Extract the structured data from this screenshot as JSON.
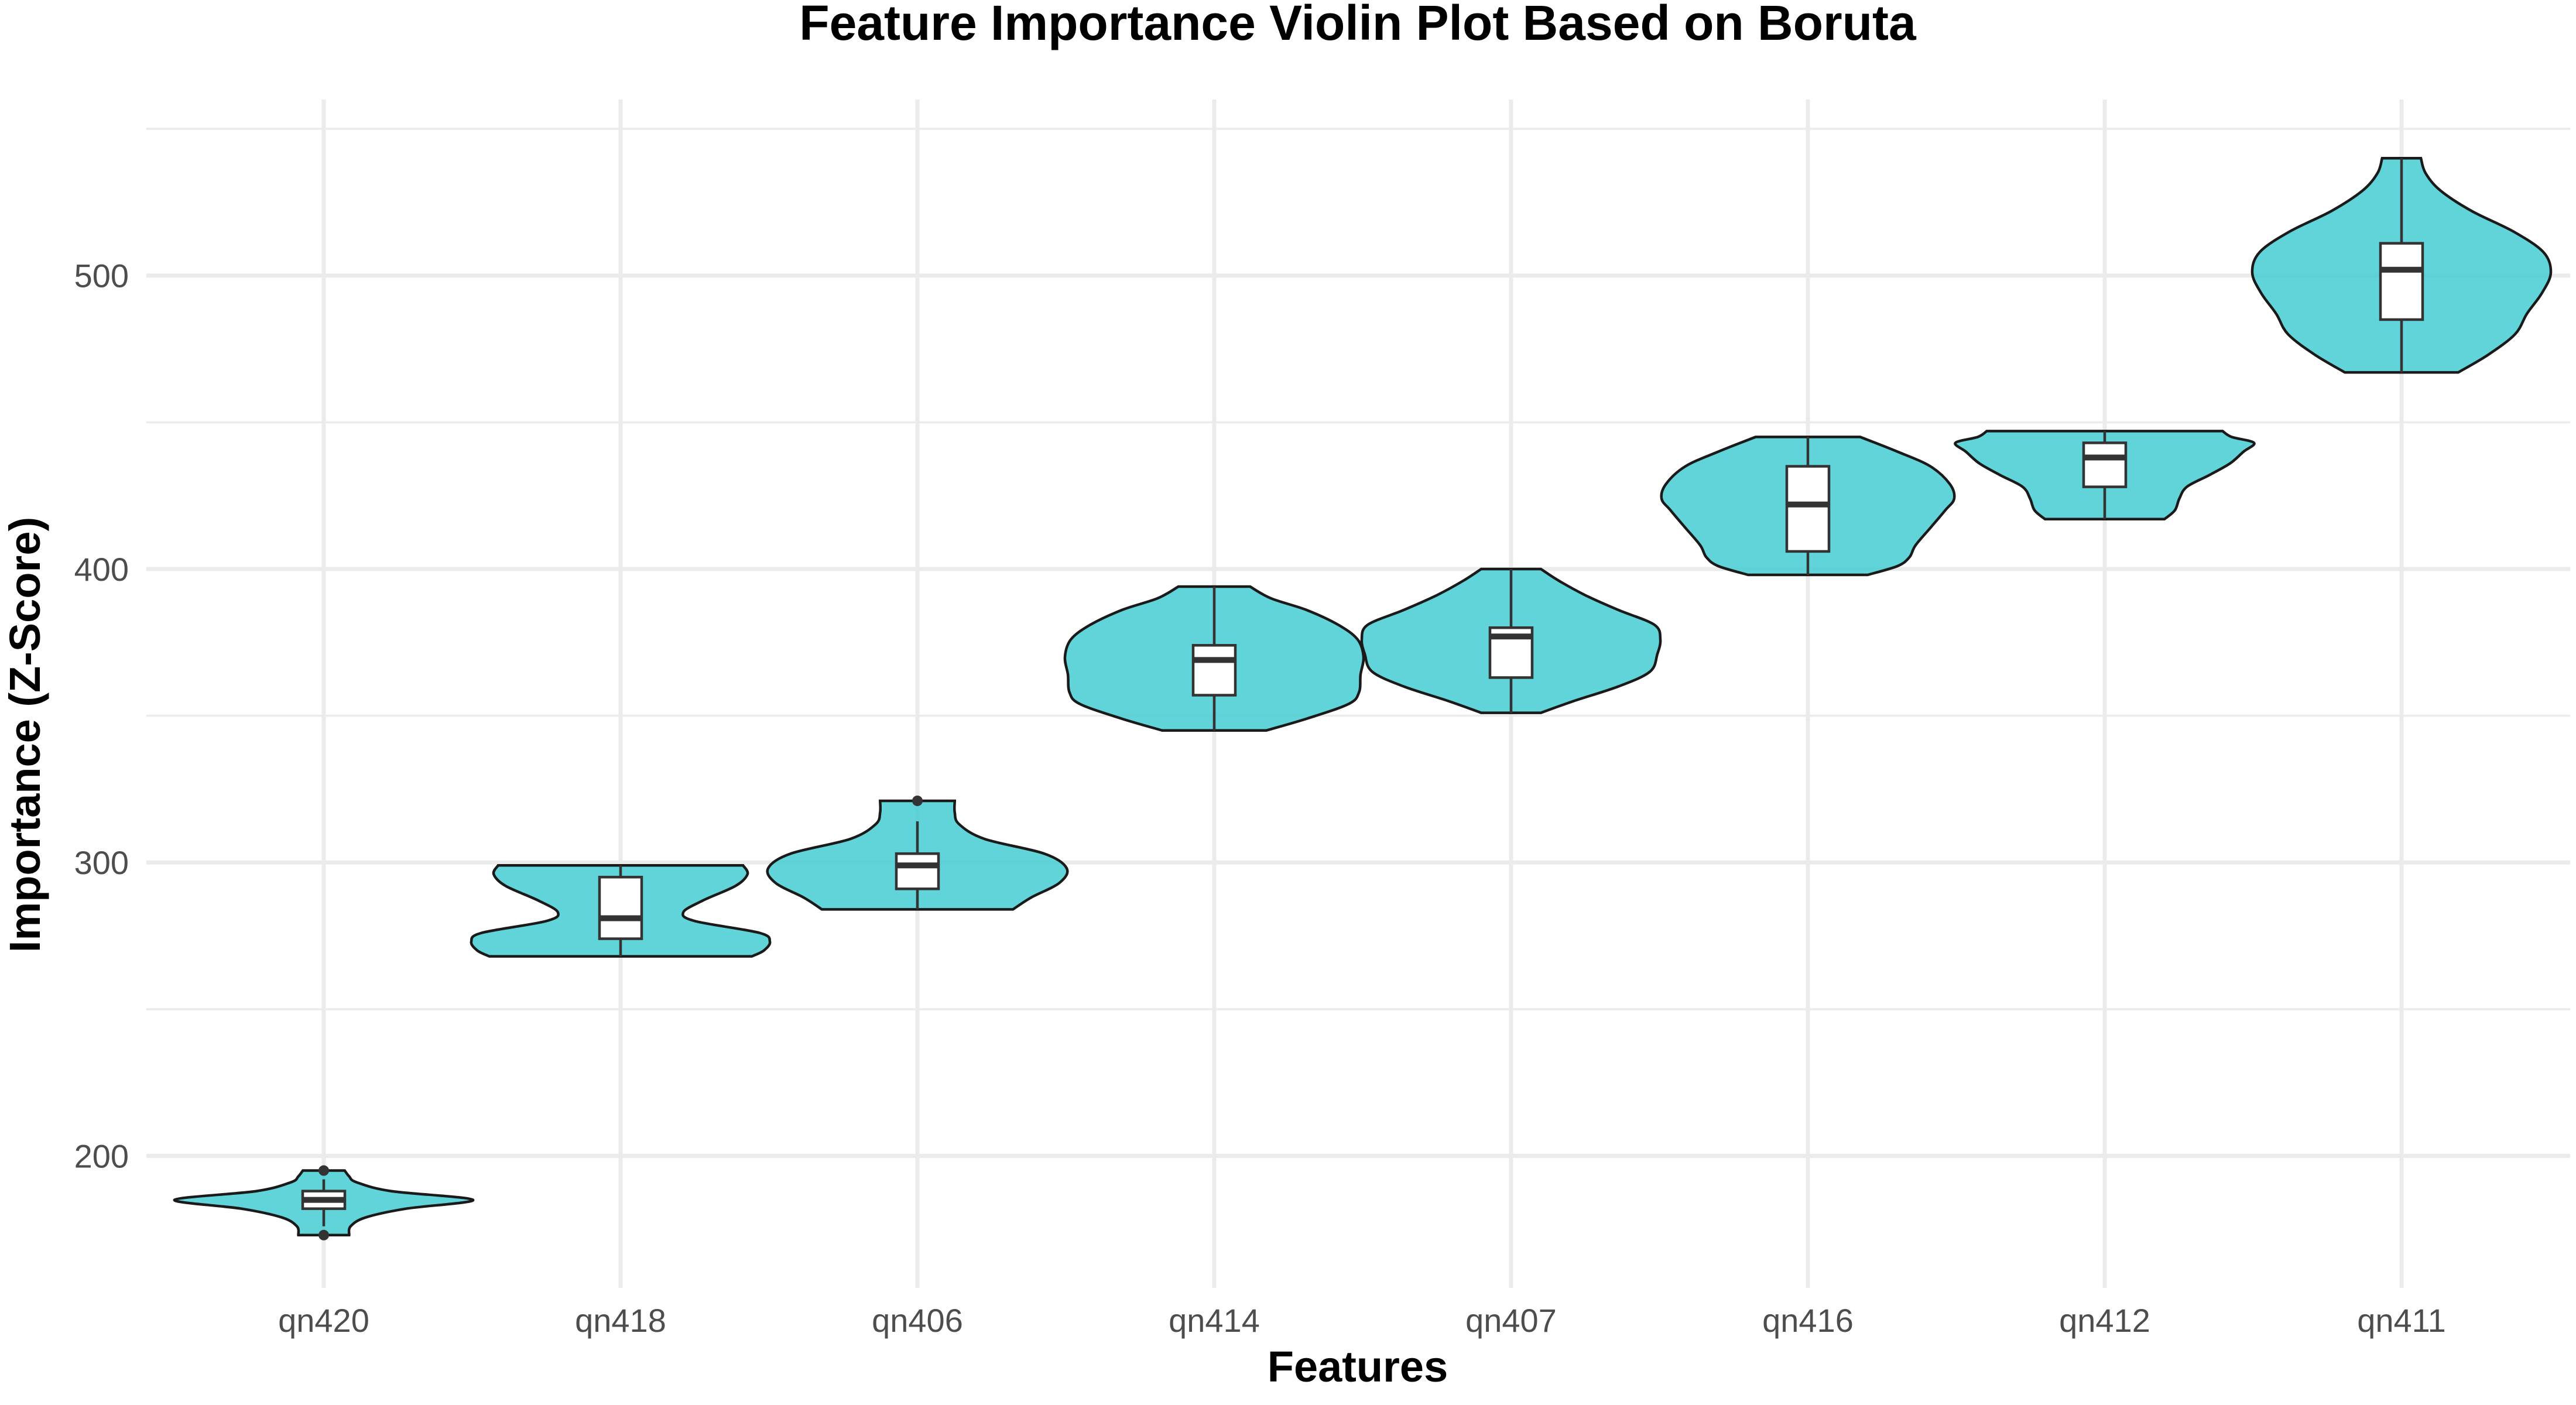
{
  "chart_data": {
    "type": "violin",
    "title": "Feature Importance Violin Plot Based on Boruta",
    "xlabel": "Features",
    "ylabel": "Importance (Z-Score)",
    "ylim": [
      155,
      560
    ],
    "yticks": [
      200,
      300,
      400,
      500
    ],
    "grid": true,
    "fill_color": "#3ecad1",
    "categories": [
      "qn420",
      "qn418",
      "qn406",
      "qn414",
      "qn407",
      "qn416",
      "qn412",
      "qn411"
    ],
    "series": [
      {
        "category": "qn420",
        "min": 173,
        "max": 195,
        "box": {
          "q1": 182,
          "median": 185,
          "q3": 188,
          "whisker_low": 176,
          "whisker_high": 192
        },
        "outliers": [
          173,
          195
        ],
        "density": [
          [
            173,
            0.17
          ],
          [
            176,
            0.18
          ],
          [
            179,
            0.28
          ],
          [
            182,
            0.55
          ],
          [
            185,
            1.0
          ],
          [
            188,
            0.45
          ],
          [
            191,
            0.22
          ],
          [
            193,
            0.17
          ],
          [
            195,
            0.14
          ]
        ]
      },
      {
        "category": "qn418",
        "min": 268,
        "max": 299,
        "box": {
          "q1": 274,
          "median": 281,
          "q3": 295,
          "whisker_low": 268,
          "whisker_high": 299
        },
        "outliers": [],
        "density": [
          [
            268,
            0.88
          ],
          [
            270,
            0.96
          ],
          [
            273,
            1.0
          ],
          [
            276,
            0.93
          ],
          [
            280,
            0.5
          ],
          [
            283,
            0.42
          ],
          [
            287,
            0.55
          ],
          [
            292,
            0.77
          ],
          [
            296,
            0.85
          ],
          [
            299,
            0.82
          ]
        ]
      },
      {
        "category": "qn406",
        "min": 284,
        "max": 321,
        "box": {
          "q1": 291,
          "median": 299,
          "q3": 303,
          "whisker_low": 284,
          "whisker_high": 314
        },
        "outliers": [
          321
        ],
        "density": [
          [
            284,
            0.64
          ],
          [
            288,
            0.76
          ],
          [
            293,
            0.95
          ],
          [
            298,
            1.0
          ],
          [
            303,
            0.85
          ],
          [
            308,
            0.45
          ],
          [
            313,
            0.28
          ],
          [
            317,
            0.25
          ],
          [
            321,
            0.25
          ]
        ]
      },
      {
        "category": "qn414",
        "min": 345,
        "max": 394,
        "box": {
          "q1": 357,
          "median": 369,
          "q3": 374,
          "whisker_low": 345,
          "whisker_high": 394
        },
        "outliers": [],
        "density": [
          [
            345,
            0.35
          ],
          [
            349,
            0.62
          ],
          [
            354,
            0.9
          ],
          [
            358,
            0.97
          ],
          [
            364,
            0.98
          ],
          [
            370,
            1.0
          ],
          [
            376,
            0.96
          ],
          [
            381,
            0.83
          ],
          [
            386,
            0.62
          ],
          [
            390,
            0.38
          ],
          [
            394,
            0.24
          ]
        ]
      },
      {
        "category": "qn407",
        "min": 351,
        "max": 400,
        "box": {
          "q1": 363,
          "median": 377,
          "q3": 380,
          "whisker_low": 351,
          "whisker_high": 400
        },
        "outliers": [],
        "density": [
          [
            351,
            0.2
          ],
          [
            355,
            0.42
          ],
          [
            360,
            0.72
          ],
          [
            365,
            0.93
          ],
          [
            371,
            0.98
          ],
          [
            376,
            1.0
          ],
          [
            381,
            0.96
          ],
          [
            386,
            0.72
          ],
          [
            391,
            0.5
          ],
          [
            396,
            0.32
          ],
          [
            400,
            0.2
          ]
        ]
      },
      {
        "category": "qn416",
        "min": 398,
        "max": 445,
        "box": {
          "q1": 406,
          "median": 422,
          "q3": 435,
          "whisker_low": 398,
          "whisker_high": 445
        },
        "outliers": [],
        "density": [
          [
            398,
            0.4
          ],
          [
            401,
            0.6
          ],
          [
            404,
            0.68
          ],
          [
            408,
            0.72
          ],
          [
            414,
            0.82
          ],
          [
            420,
            0.92
          ],
          [
            424,
            0.98
          ],
          [
            429,
            0.95
          ],
          [
            435,
            0.82
          ],
          [
            440,
            0.6
          ],
          [
            445,
            0.35
          ]
        ]
      },
      {
        "category": "qn412",
        "min": 417,
        "max": 447,
        "box": {
          "q1": 428,
          "median": 438,
          "q3": 443,
          "whisker_low": 417,
          "whisker_high": 447
        },
        "outliers": [],
        "density": [
          [
            417,
            0.4
          ],
          [
            420,
            0.47
          ],
          [
            424,
            0.5
          ],
          [
            428,
            0.55
          ],
          [
            432,
            0.7
          ],
          [
            436,
            0.84
          ],
          [
            440,
            0.93
          ],
          [
            443,
            1.0
          ],
          [
            445,
            0.85
          ],
          [
            447,
            0.79
          ]
        ]
      },
      {
        "category": "qn411",
        "min": 467,
        "max": 540,
        "box": {
          "q1": 485,
          "median": 502,
          "q3": 511,
          "whisker_low": 467,
          "whisker_high": 540
        },
        "outliers": [],
        "density": [
          [
            467,
            0.38
          ],
          [
            473,
            0.58
          ],
          [
            480,
            0.76
          ],
          [
            487,
            0.84
          ],
          [
            494,
            0.94
          ],
          [
            501,
            1.0
          ],
          [
            508,
            0.95
          ],
          [
            515,
            0.75
          ],
          [
            522,
            0.47
          ],
          [
            529,
            0.26
          ],
          [
            535,
            0.16
          ],
          [
            540,
            0.13
          ]
        ]
      }
    ]
  }
}
